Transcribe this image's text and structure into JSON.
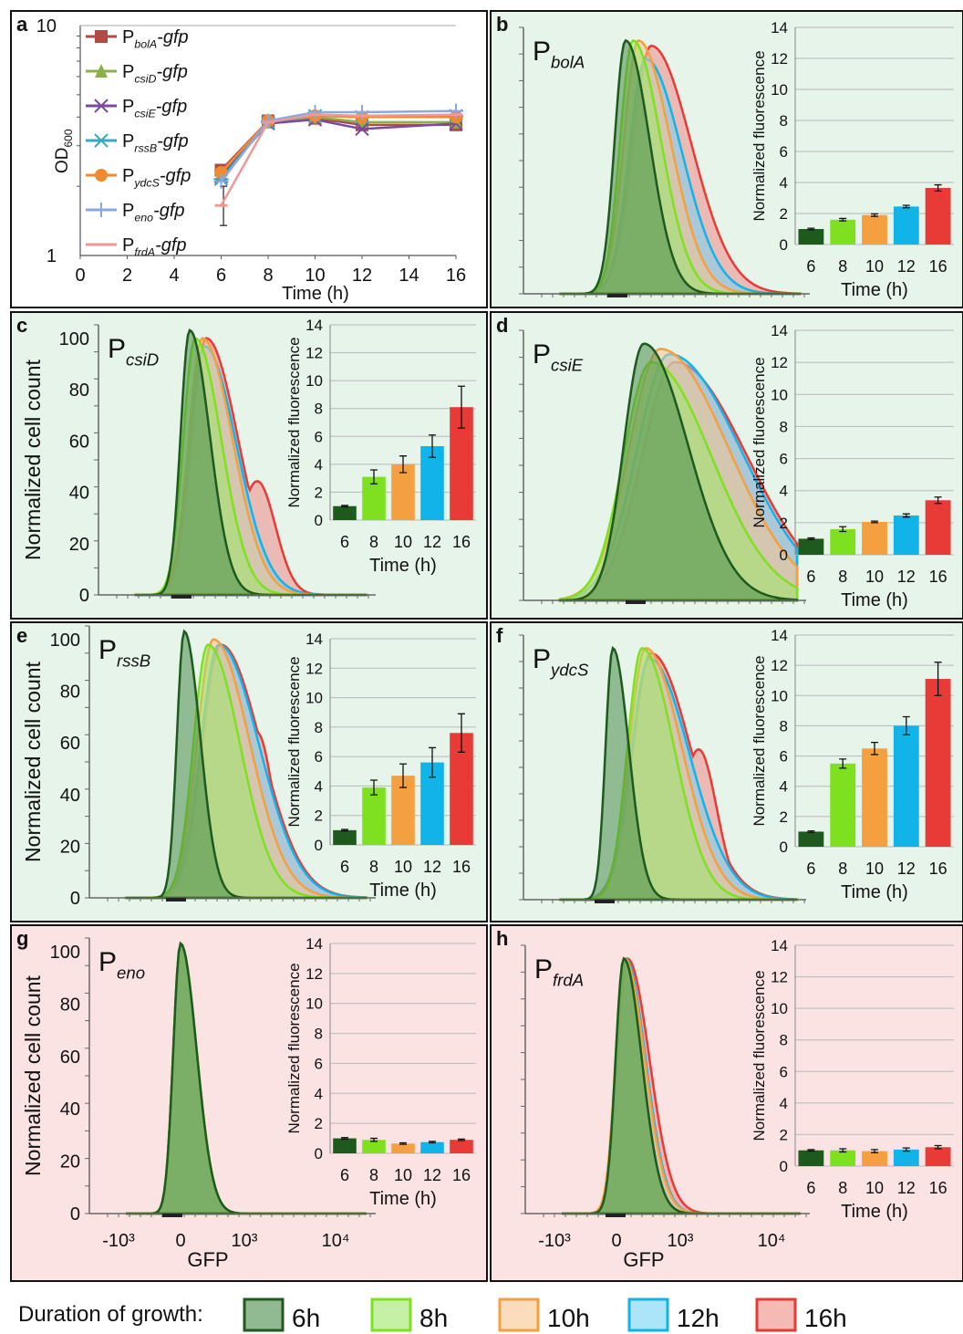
{
  "colors": {
    "6h": "#1e5a1e",
    "8h": "#7fe020",
    "10h": "#f5a040",
    "12h": "#10b4e8",
    "16h": "#e83a36",
    "fill6": "#4a8c4a",
    "fill8": "#9ee86a",
    "fill10": "#f8c490",
    "fill12": "#74d4f4",
    "fill16": "#ef8a86",
    "bg_green": "#e6f4ea",
    "bg_pink": "#fbe3e3"
  },
  "legend": {
    "title": "Duration of growth:",
    "items": [
      {
        "key": "6h",
        "label": "6h"
      },
      {
        "key": "8h",
        "label": "8h"
      },
      {
        "key": "10h",
        "label": "10h"
      },
      {
        "key": "12h",
        "label": "12h"
      },
      {
        "key": "16h",
        "label": "16h"
      }
    ]
  },
  "chart_data": [
    {
      "panel": "a",
      "type": "line",
      "ylabel": "OD600",
      "ylabel_main": "OD",
      "ylabel_sub": "600",
      "xlabel": "Time (h)",
      "xticks": [
        "0",
        "2",
        "4",
        "6",
        "8",
        "10",
        "12",
        "14",
        "16"
      ],
      "yticks": [
        "1",
        "10"
      ],
      "xlim": [
        0,
        16
      ],
      "ylim": [
        1,
        10
      ],
      "yscale": "log",
      "grid": false,
      "legend_position": "top-left",
      "series": [
        {
          "name_main": "P",
          "name_sub": "bolA",
          "name_tail": "-gfp",
          "color": "#b04a48",
          "marker": "square",
          "x": [
            6,
            8,
            10,
            12,
            16
          ],
          "y": [
            2.35,
            3.85,
            3.95,
            3.7,
            3.7
          ]
        },
        {
          "name_main": "P",
          "name_sub": "csiD",
          "name_tail": "-gfp",
          "color": "#8cb048",
          "marker": "triangle",
          "x": [
            6,
            8,
            10,
            12,
            16
          ],
          "y": [
            2.25,
            3.8,
            4.0,
            3.8,
            3.8
          ]
        },
        {
          "name_main": "P",
          "name_sub": "csiE",
          "name_tail": "-gfp",
          "color": "#7a4aa0",
          "marker": "x",
          "x": [
            6,
            8,
            10,
            12,
            16
          ],
          "y": [
            2.2,
            3.75,
            3.9,
            3.55,
            3.75
          ]
        },
        {
          "name_main": "P",
          "name_sub": "rssB",
          "name_tail": "-gfp",
          "color": "#38a8c0",
          "marker": "star",
          "x": [
            6,
            8,
            10,
            12,
            16
          ],
          "y": [
            2.15,
            3.8,
            4.05,
            4.0,
            4.05
          ]
        },
        {
          "name_main": "P",
          "name_sub": "ydcS",
          "name_tail": "-gfp",
          "color": "#f08a30",
          "marker": "circle",
          "x": [
            6,
            8,
            10,
            12,
            16
          ],
          "y": [
            2.3,
            3.85,
            4.05,
            4.0,
            4.0
          ]
        },
        {
          "name_main": "P",
          "name_sub": "eno",
          "name_tail": "-gfp",
          "color": "#8aa8e0",
          "marker": "plus",
          "x": [
            6,
            8,
            10,
            12,
            16
          ],
          "y": [
            2.1,
            3.85,
            4.2,
            4.2,
            4.25
          ]
        },
        {
          "name_main": "P",
          "name_sub": "frdA",
          "name_tail": "-gfp",
          "color": "#f09898",
          "marker": "dash",
          "x": [
            6,
            8,
            10,
            12,
            16
          ],
          "y": [
            1.65,
            3.8,
            4.1,
            4.05,
            4.1
          ]
        }
      ]
    },
    {
      "panel": "b",
      "type": "histogram",
      "promoter_main": "P",
      "promoter_sub": "bolA",
      "background": "green",
      "ylabel": "",
      "xlabel": "",
      "inset": {
        "type": "bar",
        "ylabel": "Normalized fluorescence",
        "xlabel": "Time (h)",
        "categories": [
          "6",
          "8",
          "10",
          "12",
          "16"
        ],
        "values": [
          1.0,
          1.6,
          1.9,
          2.45,
          3.65
        ],
        "errors": [
          0.05,
          0.08,
          0.08,
          0.08,
          0.2
        ],
        "ylim": [
          0,
          14
        ],
        "yticks": [
          "0",
          "2",
          "4",
          "6",
          "8",
          "10",
          "12",
          "14"
        ]
      },
      "peaks": {
        "6h": [
          0.97
        ],
        "8h": [
          0.97
        ],
        "10h": [
          0.97
        ],
        "12h": [
          0.9,
          0.34
        ],
        "16h": [
          0.95,
          0.38
        ]
      }
    },
    {
      "panel": "c",
      "type": "histogram",
      "promoter_main": "P",
      "promoter_sub": "csiD",
      "background": "green",
      "ylabel": "Normalized cell count",
      "yticks": [
        "0",
        "20",
        "40",
        "60",
        "80",
        "100"
      ],
      "xlabel": "",
      "inset": {
        "type": "bar",
        "ylabel": "Normalized fluorescence",
        "xlabel": "Time (h)",
        "categories": [
          "6",
          "8",
          "10",
          "12",
          "16"
        ],
        "values": [
          1.0,
          3.1,
          4.0,
          5.3,
          8.1
        ],
        "errors": [
          0.05,
          0.5,
          0.6,
          0.8,
          1.5
        ],
        "ylim": [
          0,
          14
        ],
        "yticks": [
          "0",
          "2",
          "4",
          "6",
          "8",
          "10",
          "12",
          "14"
        ]
      },
      "peaks": {
        "6h": [
          1.0
        ],
        "8h": [
          0.97
        ],
        "10h": [
          0.97
        ],
        "12h": [
          0.94,
          0.47
        ],
        "16h": [
          0.97,
          0.43
        ]
      }
    },
    {
      "panel": "d",
      "type": "histogram",
      "promoter_main": "P",
      "promoter_sub": "csiE",
      "background": "green",
      "ylabel": "",
      "xlabel": "",
      "inset": {
        "type": "bar",
        "ylabel": "Normalized fluorescence",
        "xlabel": "Time (h)",
        "categories": [
          "6",
          "8",
          "10",
          "12",
          "16"
        ],
        "values": [
          1.0,
          1.6,
          2.05,
          2.45,
          3.4
        ],
        "errors": [
          0.05,
          0.15,
          0.05,
          0.1,
          0.2
        ],
        "ylim": [
          0,
          14
        ],
        "yticks": [
          "0",
          "2",
          "4",
          "6",
          "8",
          "10",
          "12",
          "14"
        ]
      },
      "peaks": {
        "6h": [
          0.97
        ],
        "8h": [
          0.9
        ],
        "10h": [
          0.95
        ],
        "12h": [
          0.93,
          0.62
        ],
        "16h": [
          0.9,
          0.6
        ]
      }
    },
    {
      "panel": "e",
      "type": "histogram",
      "promoter_main": "P",
      "promoter_sub": "rssB",
      "background": "green",
      "ylabel": "Normalized cell count",
      "yticks": [
        "0",
        "20",
        "40",
        "60",
        "80",
        "100"
      ],
      "xlabel": "",
      "inset": {
        "type": "bar",
        "ylabel": "Normalized fluorescence",
        "xlabel": "Time (h)",
        "categories": [
          "6",
          "8",
          "10",
          "12",
          "16"
        ],
        "values": [
          1.0,
          3.9,
          4.7,
          5.6,
          7.6
        ],
        "errors": [
          0.05,
          0.5,
          0.8,
          1.0,
          1.3
        ],
        "ylim": [
          0,
          14
        ],
        "yticks": [
          "0",
          "2",
          "4",
          "6",
          "8",
          "10",
          "12",
          "14"
        ]
      },
      "peaks": {
        "6h": [
          1.0
        ],
        "8h": [
          0.95
        ],
        "10h": [
          0.97
        ],
        "12h": [
          0.95,
          0.62
        ],
        "16h": [
          0.95,
          0.62
        ]
      }
    },
    {
      "panel": "f",
      "type": "histogram",
      "promoter_main": "P",
      "promoter_sub": "ydcS",
      "background": "green",
      "ylabel": "",
      "xlabel": "",
      "inset": {
        "type": "bar",
        "ylabel": "Normalized fluorescence",
        "xlabel": "Time (h)",
        "categories": [
          "6",
          "8",
          "10",
          "12",
          "16"
        ],
        "values": [
          1.0,
          5.5,
          6.5,
          8.0,
          11.1
        ],
        "errors": [
          0.05,
          0.3,
          0.4,
          0.6,
          1.1
        ],
        "ylim": [
          0,
          14
        ],
        "yticks": [
          "0",
          "2",
          "4",
          "6",
          "8",
          "10",
          "12",
          "14"
        ]
      },
      "peaks": {
        "6h": [
          0.97
        ],
        "8h": [
          0.97
        ],
        "10h": [
          0.97
        ],
        "12h": [
          0.93,
          0.42
        ],
        "16h": [
          0.95,
          0.58
        ]
      }
    },
    {
      "panel": "g",
      "type": "histogram",
      "promoter_main": "P",
      "promoter_sub": "eno",
      "background": "pink",
      "ylabel": "Normalized cell count",
      "yticks": [
        "0",
        "20",
        "40",
        "60",
        "80",
        "100"
      ],
      "xlabel": "GFP",
      "xticks": [
        "-10³",
        "0",
        "10³",
        "10⁴"
      ],
      "inset": {
        "type": "bar",
        "ylabel": "Normalized fluorescence",
        "xlabel": "Time (h)",
        "categories": [
          "6",
          "8",
          "10",
          "12",
          "16"
        ],
        "values": [
          1.0,
          0.9,
          0.65,
          0.75,
          0.9
        ],
        "errors": [
          0.05,
          0.1,
          0.05,
          0.05,
          0.05
        ],
        "ylim": [
          0,
          14
        ],
        "yticks": [
          "0",
          "2",
          "4",
          "6",
          "8",
          "10",
          "12",
          "14"
        ]
      },
      "peaks": {
        "6h": [
          1.0
        ],
        "8h": [
          1.0
        ],
        "10h": [
          1.0
        ],
        "12h": [
          1.0
        ],
        "16h": [
          1.0
        ]
      }
    },
    {
      "panel": "h",
      "type": "histogram",
      "promoter_main": "P",
      "promoter_sub": "frdA",
      "background": "pink",
      "ylabel": "",
      "xlabel": "GFP",
      "xticks": [
        "-10³",
        "0",
        "10³",
        "10⁴"
      ],
      "inset": {
        "type": "bar",
        "ylabel": "Normalized fluorescence",
        "xlabel": "Time (h)",
        "categories": [
          "6",
          "8",
          "10",
          "12",
          "16"
        ],
        "values": [
          1.0,
          1.0,
          0.95,
          1.05,
          1.2
        ],
        "errors": [
          0.05,
          0.1,
          0.1,
          0.1,
          0.1
        ],
        "ylim": [
          0,
          14
        ],
        "yticks": [
          "0",
          "2",
          "4",
          "6",
          "8",
          "10",
          "12",
          "14"
        ]
      },
      "peaks": {
        "6h": [
          0.97
        ],
        "8h": [
          0.97
        ],
        "10h": [
          0.97
        ],
        "12h": [
          0.97
        ],
        "16h": [
          0.97
        ]
      }
    }
  ]
}
